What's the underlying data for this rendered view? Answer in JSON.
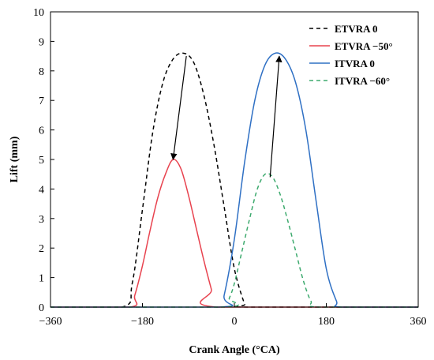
{
  "chart_data": {
    "type": "line",
    "xlabel": "Crank Angle (°CA)",
    "ylabel": "Lift (mm)",
    "xlim": [
      -360,
      360
    ],
    "ylim": [
      0,
      10
    ],
    "xticks": [
      -360,
      -180,
      0,
      180,
      360
    ],
    "yticks": [
      0,
      1,
      2,
      3,
      4,
      5,
      6,
      7,
      8,
      9,
      10
    ],
    "grid": false,
    "legend_position": "top-right",
    "series": [
      {
        "name": "ETVRA 0",
        "color": "#000000",
        "dash": "dashed",
        "x": [
          -360,
          -220,
          -200,
          -180,
          -160,
          -140,
          -120,
          -100,
          -80,
          -60,
          -40,
          -20,
          0,
          20,
          25,
          360
        ],
        "y": [
          0,
          0,
          0.8,
          3.3,
          5.9,
          7.6,
          8.4,
          8.6,
          8.3,
          7.2,
          5.5,
          3.4,
          1.3,
          0.1,
          0,
          0
        ]
      },
      {
        "name": "ETVRA −50°",
        "color": "#e8434f",
        "dash": "solid",
        "x": [
          -360,
          -205,
          -195,
          -180,
          -165,
          -150,
          -135,
          -120,
          -105,
          -90,
          -75,
          -60,
          -45,
          -35,
          360
        ],
        "y": [
          0,
          0,
          0.4,
          1.4,
          2.6,
          3.7,
          4.5,
          5.0,
          4.7,
          3.8,
          2.7,
          1.6,
          0.6,
          0,
          0
        ]
      },
      {
        "name": "ITVRA 0",
        "color": "#2f70c4",
        "dash": "solid",
        "x": [
          -360,
          -30,
          -20,
          0,
          20,
          40,
          60,
          80,
          100,
          120,
          140,
          160,
          180,
          200,
          210,
          360
        ],
        "y": [
          0,
          0,
          0.4,
          2.3,
          4.9,
          7.0,
          8.2,
          8.6,
          8.4,
          7.6,
          6.0,
          3.6,
          1.3,
          0.2,
          0,
          0
        ]
      },
      {
        "name": "ITVRA −60°",
        "color": "#3daa6e",
        "dash": "dashed",
        "x": [
          -360,
          -20,
          -10,
          0,
          15,
          30,
          45,
          60,
          75,
          90,
          105,
          120,
          135,
          150,
          165,
          360
        ],
        "y": [
          0,
          0,
          0.3,
          0.8,
          1.9,
          3.0,
          4.0,
          4.5,
          4.4,
          3.8,
          2.9,
          1.9,
          0.9,
          0.2,
          0,
          0
        ]
      }
    ],
    "annotations": [
      {
        "type": "arrow",
        "from": [
          -94,
          8.5
        ],
        "to": [
          -120,
          5.0
        ]
      },
      {
        "type": "arrow",
        "from": [
          70,
          4.4
        ],
        "to": [
          88,
          8.5
        ]
      }
    ]
  }
}
